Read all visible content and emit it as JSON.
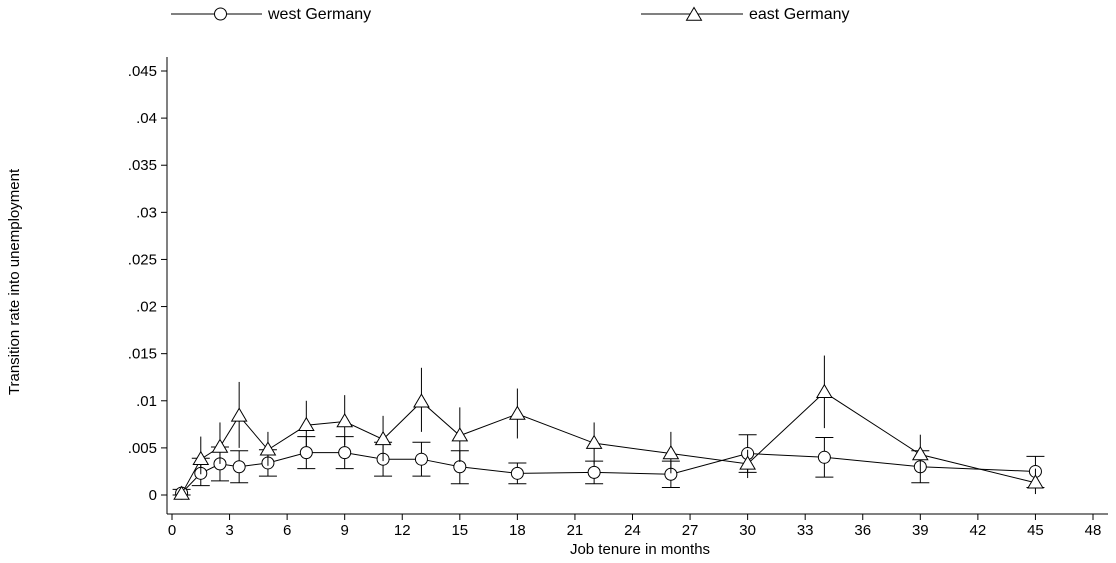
{
  "chart_data": {
    "type": "line",
    "xlabel": "Job tenure in months",
    "ylabel": "Transition rate into unemployment",
    "xlim": [
      0,
      48
    ],
    "ylim": [
      0,
      0.045
    ],
    "x_ticks": [
      0,
      3,
      6,
      9,
      12,
      15,
      18,
      21,
      24,
      27,
      30,
      33,
      36,
      39,
      42,
      45,
      48
    ],
    "x_tick_labels": [
      "0",
      "3",
      "6",
      "9",
      "12",
      "15",
      "18",
      "21",
      "24",
      "27",
      "30",
      "33",
      "36",
      "39",
      "42",
      "45",
      "48"
    ],
    "y_ticks": [
      0,
      0.005,
      0.01,
      0.015,
      0.02,
      0.025,
      0.03,
      0.035,
      0.04,
      0.045
    ],
    "y_tick_labels": [
      "0",
      ".005",
      ".01",
      ".015",
      ".02",
      ".025",
      ".03",
      ".035",
      ".04",
      ".045"
    ],
    "grid": false,
    "legend_position": "top",
    "series": [
      {
        "name": "west Germany",
        "marker": "circle",
        "error_style": "capped",
        "color": "#000000",
        "x": [
          0.5,
          1.5,
          2.5,
          3.5,
          5,
          7,
          9,
          11,
          13,
          15,
          18,
          22,
          26,
          30,
          34,
          39,
          45
        ],
        "y": [
          0.0002,
          0.0023,
          0.0033,
          0.003,
          0.0034,
          0.0045,
          0.0045,
          0.0038,
          0.0038,
          0.003,
          0.0023,
          0.0024,
          0.0022,
          0.0044,
          0.004,
          0.003,
          0.0025
        ],
        "lower": [
          0.0,
          0.001,
          0.0015,
          0.0013,
          0.002,
          0.0028,
          0.0028,
          0.002,
          0.002,
          0.0012,
          0.0012,
          0.0012,
          0.0008,
          0.0024,
          0.0019,
          0.0013,
          0.0008
        ],
        "upper": [
          0.0006,
          0.0039,
          0.0051,
          0.0047,
          0.0048,
          0.0062,
          0.0062,
          0.0056,
          0.0056,
          0.0047,
          0.0034,
          0.0036,
          0.0036,
          0.0064,
          0.0061,
          0.0047,
          0.0041
        ]
      },
      {
        "name": "east Germany",
        "marker": "triangle",
        "error_style": "plain",
        "color": "#000000",
        "x": [
          0.5,
          1.5,
          2.5,
          3.5,
          5,
          7,
          9,
          11,
          13,
          15,
          18,
          22,
          26,
          30,
          34,
          39,
          45
        ],
        "y": [
          0.0001,
          0.0038,
          0.0051,
          0.0084,
          0.0048,
          0.0074,
          0.0078,
          0.0059,
          0.0099,
          0.0063,
          0.0086,
          0.0055,
          0.0044,
          0.0033,
          0.0109,
          0.0043,
          0.0013
        ],
        "lower": [
          0.0,
          0.0022,
          0.0033,
          0.005,
          0.0031,
          0.0052,
          0.0053,
          0.0036,
          0.0067,
          0.0035,
          0.006,
          0.0033,
          0.0023,
          0.0018,
          0.0071,
          0.0024,
          0.0001
        ],
        "upper": [
          0.0003,
          0.0062,
          0.0077,
          0.012,
          0.0067,
          0.01,
          0.0106,
          0.0084,
          0.0135,
          0.0093,
          0.0113,
          0.0077,
          0.0067,
          0.0048,
          0.0148,
          0.0064,
          0.0028
        ]
      }
    ]
  }
}
